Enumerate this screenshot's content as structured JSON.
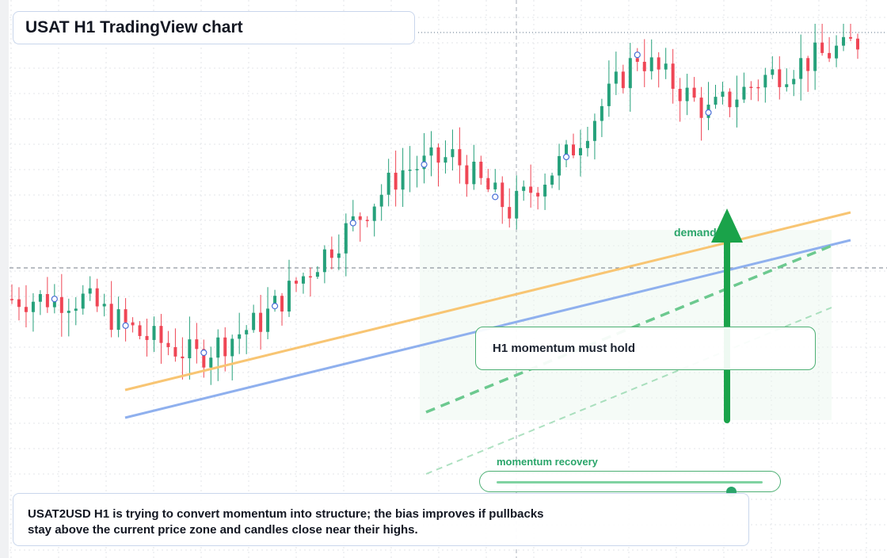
{
  "header": {
    "title": "USAT H1 TradingView chart"
  },
  "annotations": {
    "callout": "H1 momentum must hold",
    "demand_label": "demand",
    "slider_label": "momentum recovery",
    "slider_value": 0.88
  },
  "note": {
    "line1": "USAT2USD H1 is trying to convert momentum into structure; the bias improves if pullbacks",
    "line2": "stay above the current price zone and candles close near their highs."
  },
  "colors": {
    "up": "#26a17b",
    "down": "#ef4655",
    "orange_line": "#f8c573",
    "blue_line": "#8fb0ee",
    "green_dashed": "#6cc98f",
    "arrow": "#1aa34a"
  },
  "chart_data": {
    "type": "candlestick",
    "symbol": "USAT2USD",
    "timeframe": "H1",
    "y_range": [
      0,
      100
    ],
    "candle_count": 120,
    "seed": 7,
    "segments": [
      [
        0,
        38
      ],
      [
        10,
        38
      ],
      [
        18,
        30
      ],
      [
        26,
        25
      ],
      [
        35,
        33
      ],
      [
        45,
        50
      ],
      [
        55,
        67
      ],
      [
        62,
        70
      ],
      [
        70,
        58
      ],
      [
        78,
        70
      ],
      [
        88,
        93
      ],
      [
        98,
        80
      ],
      [
        106,
        88
      ],
      [
        119,
        96
      ]
    ],
    "grid": true
  }
}
